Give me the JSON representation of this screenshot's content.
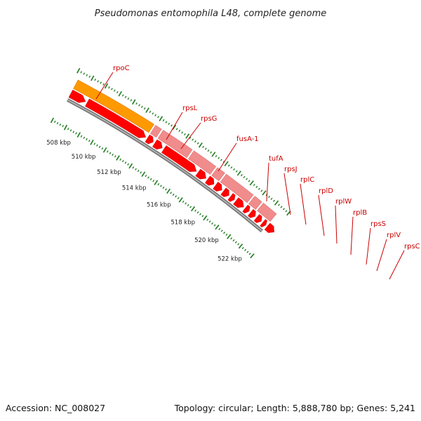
{
  "title": "Pseudomonas entomophila L48, complete genome",
  "footer": {
    "accession": "Accession: NC_008027",
    "summary": "Topology: circular; Length: 5,888,780 bp; Genes: 5,241"
  },
  "colors": {
    "rrna_gene": "#ff9900",
    "highlighted_gene": "#f08c8c",
    "cds": "#ff0000",
    "label": "#cc0000",
    "backbone": "#777777",
    "tick": "#1d7a1d"
  },
  "ruler": {
    "labels": [
      "508 kbp",
      "510 kbp",
      "512 kbp",
      "514 kbp",
      "516 kbp",
      "518 kbp",
      "520 kbp",
      "522 kbp"
    ]
  },
  "genes": [
    {
      "name": "rpoC"
    },
    {
      "name": "rpsL"
    },
    {
      "name": "rpsG"
    },
    {
      "name": "fusA-1"
    },
    {
      "name": "tufA"
    },
    {
      "name": "rpsJ"
    },
    {
      "name": "rplC"
    },
    {
      "name": "rplD"
    },
    {
      "name": "rplW"
    },
    {
      "name": "rplB"
    },
    {
      "name": "rpsS"
    },
    {
      "name": "rplV"
    },
    {
      "name": "rpsC"
    }
  ]
}
